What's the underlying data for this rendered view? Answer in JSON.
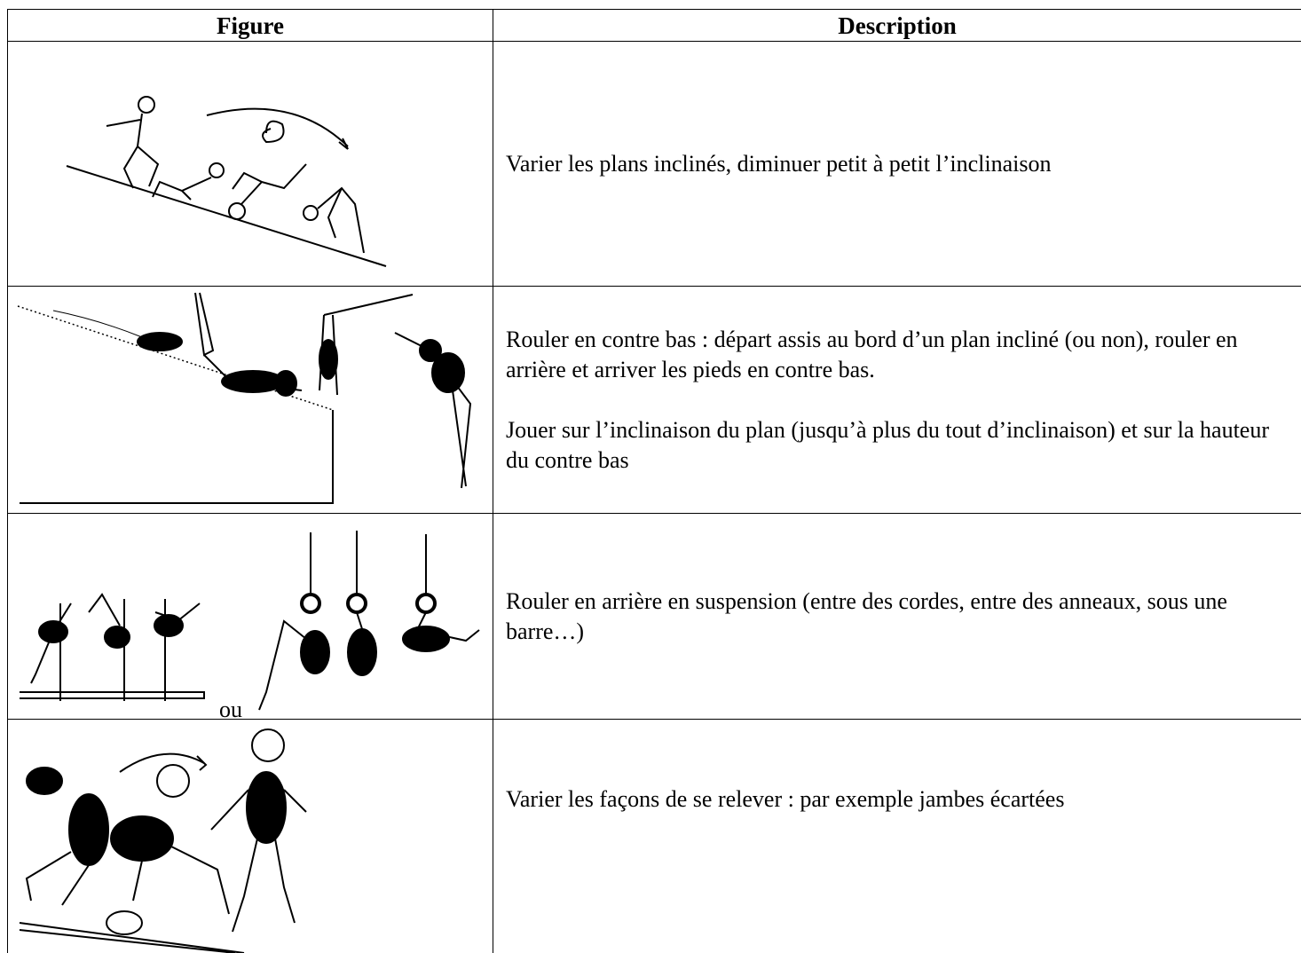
{
  "table": {
    "headers": [
      "Figure",
      "Description"
    ],
    "rows": [
      {
        "description": [
          "Varier les plans inclinés, diminuer petit à petit l’inclinaison"
        ]
      },
      {
        "description": [
          "Rouler en contre bas : départ assis au bord d’un plan incliné (ou non), rouler en arrière et arriver les pieds en contre bas.",
          "Jouer sur l’inclinaison du plan (jusqu’à plus du tout d’inclinaison) et sur la hauteur du contre bas"
        ]
      },
      {
        "figure_text": "ou",
        "description": [
          "Rouler en arrière en suspension (entre des cordes, entre des anneaux, sous une barre…)"
        ]
      },
      {
        "description": [
          "Varier les façons de se relever : par exemple jambes écartées"
        ]
      }
    ]
  }
}
